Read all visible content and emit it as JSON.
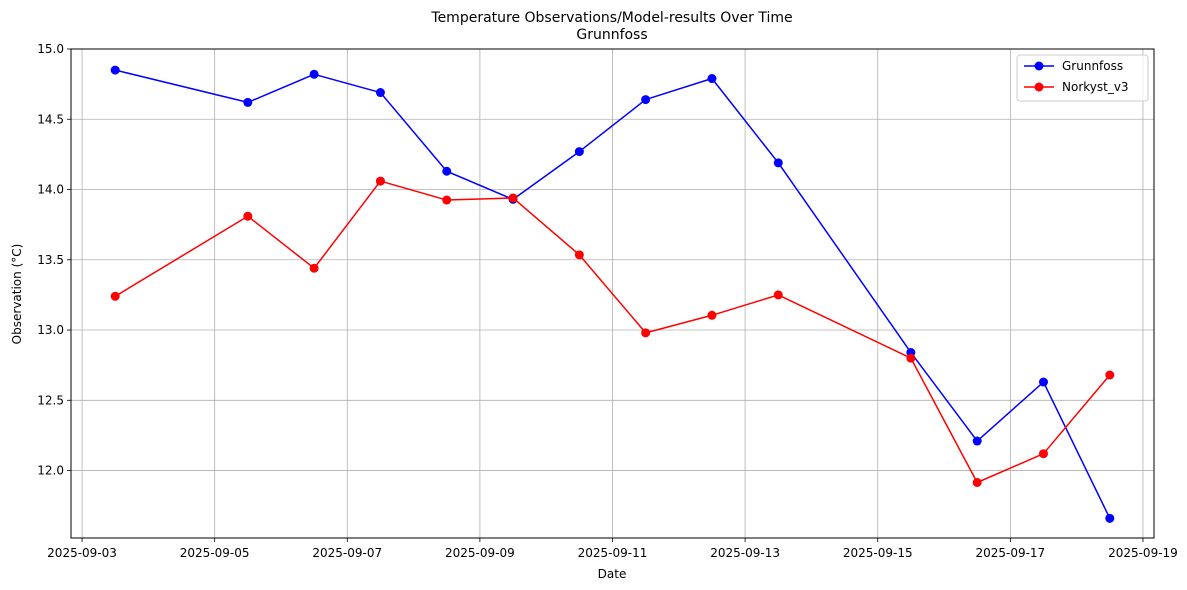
{
  "chart_data": {
    "type": "line",
    "title": "Temperature Observations/Model-results Over Time",
    "subtitle": "Grunnfoss",
    "xlabel": "Date",
    "ylabel": "Observation (°C)",
    "x_ticks": [
      "2025-09-03",
      "2025-09-05",
      "2025-09-07",
      "2025-09-09",
      "2025-09-11",
      "2025-09-13",
      "2025-09-15",
      "2025-09-17",
      "2025-09-19"
    ],
    "y_ticks": [
      "12.0",
      "12.5",
      "13.0",
      "13.5",
      "14.0",
      "14.5",
      "15.0"
    ],
    "xlim": [
      "2025-09-02 20:00",
      "2025-09-19 04:00"
    ],
    "ylim": [
      11.52,
      15.0
    ],
    "grid": true,
    "legend_position": "top-right",
    "series": [
      {
        "name": "Grunnfoss",
        "color": "#0000ff",
        "points": [
          {
            "x": "2025-09-03 12:00",
            "y": 14.85
          },
          {
            "x": "2025-09-05 12:00",
            "y": 14.62
          },
          {
            "x": "2025-09-06 12:00",
            "y": 14.82
          },
          {
            "x": "2025-09-07 12:00",
            "y": 14.69
          },
          {
            "x": "2025-09-08 12:00",
            "y": 14.13
          },
          {
            "x": "2025-09-09 12:00",
            "y": 13.93
          },
          {
            "x": "2025-09-10 12:00",
            "y": 14.27
          },
          {
            "x": "2025-09-11 12:00",
            "y": 14.64
          },
          {
            "x": "2025-09-12 12:00",
            "y": 14.79
          },
          {
            "x": "2025-09-13 12:00",
            "y": 14.19
          },
          {
            "x": "2025-09-15 12:00",
            "y": 12.84
          },
          {
            "x": "2025-09-16 12:00",
            "y": 12.21
          },
          {
            "x": "2025-09-17 12:00",
            "y": 12.63
          },
          {
            "x": "2025-09-18 12:00",
            "y": 11.66
          }
        ]
      },
      {
        "name": "Norkyst_v3",
        "color": "#ff0000",
        "points": [
          {
            "x": "2025-09-03 12:00",
            "y": 13.24
          },
          {
            "x": "2025-09-05 12:00",
            "y": 13.81
          },
          {
            "x": "2025-09-06 12:00",
            "y": 13.44
          },
          {
            "x": "2025-09-07 12:00",
            "y": 14.06
          },
          {
            "x": "2025-09-08 12:00",
            "y": 13.925
          },
          {
            "x": "2025-09-09 12:00",
            "y": 13.94
          },
          {
            "x": "2025-09-10 12:00",
            "y": 13.535
          },
          {
            "x": "2025-09-11 12:00",
            "y": 12.98
          },
          {
            "x": "2025-09-12 12:00",
            "y": 13.105
          },
          {
            "x": "2025-09-13 12:00",
            "y": 13.25
          },
          {
            "x": "2025-09-15 12:00",
            "y": 12.8
          },
          {
            "x": "2025-09-16 12:00",
            "y": 11.915
          },
          {
            "x": "2025-09-17 12:00",
            "y": 12.12
          },
          {
            "x": "2025-09-18 12:00",
            "y": 12.68
          }
        ]
      }
    ]
  }
}
